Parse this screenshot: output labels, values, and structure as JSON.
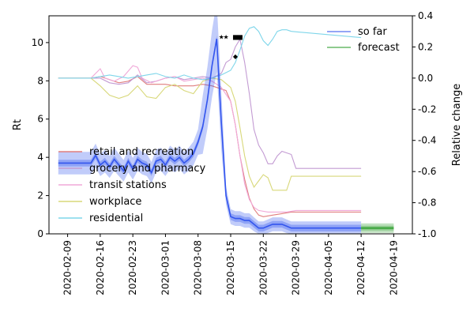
{
  "chart_data": {
    "type": "line",
    "ylabel_left": "Rt",
    "ylabel_right": "Relative change",
    "ylim_left": [
      0,
      11.4
    ],
    "ylim_right": [
      -1.0,
      0.4
    ],
    "xlim": [
      "2020-02-05",
      "2020-04-23"
    ],
    "legend_placement_right": "top-right",
    "legend_placement_left": "center-left",
    "x_ticks": [
      "2020-02-09",
      "2020-02-16",
      "2020-02-23",
      "2020-03-01",
      "2020-03-08",
      "2020-03-15",
      "2020-03-22",
      "2020-03-29",
      "2020-04-05",
      "2020-04-12",
      "2020-04-19"
    ],
    "y_ticks_left": [
      "0",
      "2",
      "4",
      "6",
      "8",
      "10"
    ],
    "y_ticks_right": [
      "-1.0",
      "-0.8",
      "-0.6",
      "-0.4",
      "-0.2",
      "0.0",
      "0.2",
      "0.4"
    ],
    "rt_series": [
      {
        "name": "so far",
        "color": "#3355ee",
        "points": [
          [
            "2020-02-07",
            3.7
          ],
          [
            "2020-02-14",
            3.7
          ],
          [
            "2020-02-15",
            4.1
          ],
          [
            "2020-02-16",
            3.6
          ],
          [
            "2020-02-17",
            3.8
          ],
          [
            "2020-02-18",
            3.5
          ],
          [
            "2020-02-19",
            3.9
          ],
          [
            "2020-02-20",
            3.6
          ],
          [
            "2020-02-21",
            3.3
          ],
          [
            "2020-02-22",
            3.8
          ],
          [
            "2020-02-23",
            3.4
          ],
          [
            "2020-02-24",
            3.9
          ],
          [
            "2020-02-25",
            3.7
          ],
          [
            "2020-02-26",
            3.6
          ],
          [
            "2020-02-27",
            3.2
          ],
          [
            "2020-02-28",
            3.8
          ],
          [
            "2020-02-29",
            3.9
          ],
          [
            "2020-03-01",
            3.6
          ],
          [
            "2020-03-02",
            4.0
          ],
          [
            "2020-03-03",
            3.8
          ],
          [
            "2020-03-04",
            4.0
          ],
          [
            "2020-03-05",
            3.7
          ],
          [
            "2020-03-06",
            3.9
          ],
          [
            "2020-03-07",
            4.2
          ],
          [
            "2020-03-08",
            4.8
          ],
          [
            "2020-03-09",
            5.6
          ],
          [
            "2020-03-10",
            7.0
          ],
          [
            "2020-03-11",
            8.8
          ],
          [
            "2020-03-12",
            10.2
          ],
          [
            "2020-03-13",
            5.8
          ],
          [
            "2020-03-14",
            2.0
          ],
          [
            "2020-03-15",
            0.9
          ],
          [
            "2020-03-16",
            0.8
          ],
          [
            "2020-03-17",
            0.8
          ],
          [
            "2020-03-18",
            0.7
          ],
          [
            "2020-03-19",
            0.7
          ],
          [
            "2020-03-20",
            0.5
          ],
          [
            "2020-03-21",
            0.3
          ],
          [
            "2020-03-22",
            0.3
          ],
          [
            "2020-03-23",
            0.4
          ],
          [
            "2020-03-24",
            0.5
          ],
          [
            "2020-03-25",
            0.5
          ],
          [
            "2020-03-26",
            0.5
          ],
          [
            "2020-03-27",
            0.4
          ],
          [
            "2020-03-28",
            0.3
          ],
          [
            "2020-04-12",
            0.3
          ]
        ],
        "band": [
          0.35,
          0.7
        ]
      },
      {
        "name": "forecast",
        "color": "#2a9d2a",
        "points": [
          [
            "2020-04-12",
            0.3
          ],
          [
            "2020-04-19",
            0.3
          ]
        ],
        "band": [
          0.25,
          0.25
        ]
      }
    ],
    "mobility_series": [
      {
        "name": "retail and recreation",
        "color": "#e07f7f",
        "points": [
          [
            "2020-02-07",
            0.0
          ],
          [
            "2020-02-14",
            0.0
          ],
          [
            "2020-02-16",
            0.01
          ],
          [
            "2020-02-18",
            -0.01
          ],
          [
            "2020-02-20",
            -0.03
          ],
          [
            "2020-02-22",
            -0.02
          ],
          [
            "2020-02-24",
            0.01
          ],
          [
            "2020-02-26",
            -0.04
          ],
          [
            "2020-02-28",
            -0.04
          ],
          [
            "2020-03-01",
            -0.04
          ],
          [
            "2020-03-03",
            -0.05
          ],
          [
            "2020-03-05",
            -0.05
          ],
          [
            "2020-03-07",
            -0.05
          ],
          [
            "2020-03-09",
            -0.04
          ],
          [
            "2020-03-11",
            -0.05
          ],
          [
            "2020-03-13",
            -0.07
          ],
          [
            "2020-03-14",
            -0.08
          ],
          [
            "2020-03-15",
            -0.15
          ],
          [
            "2020-03-16",
            -0.3
          ],
          [
            "2020-03-17",
            -0.5
          ],
          [
            "2020-03-18",
            -0.65
          ],
          [
            "2020-03-19",
            -0.77
          ],
          [
            "2020-03-20",
            -0.84
          ],
          [
            "2020-03-21",
            -0.88
          ],
          [
            "2020-03-22",
            -0.89
          ],
          [
            "2020-03-24",
            -0.88
          ],
          [
            "2020-03-26",
            -0.87
          ],
          [
            "2020-03-28",
            -0.86
          ],
          [
            "2020-03-29",
            -0.86
          ],
          [
            "2020-04-12",
            -0.86
          ]
        ]
      },
      {
        "name": "grocery and pharmacy",
        "color": "#c39bd3",
        "points": [
          [
            "2020-02-07",
            0.0
          ],
          [
            "2020-02-14",
            0.0
          ],
          [
            "2020-02-16",
            0.0
          ],
          [
            "2020-02-18",
            -0.03
          ],
          [
            "2020-02-20",
            -0.04
          ],
          [
            "2020-02-22",
            -0.03
          ],
          [
            "2020-02-24",
            0.02
          ],
          [
            "2020-02-26",
            -0.03
          ],
          [
            "2020-02-28",
            -0.02
          ],
          [
            "2020-03-01",
            0.0
          ],
          [
            "2020-03-03",
            0.01
          ],
          [
            "2020-03-05",
            -0.01
          ],
          [
            "2020-03-07",
            0.0
          ],
          [
            "2020-03-09",
            0.01
          ],
          [
            "2020-03-11",
            0.0
          ],
          [
            "2020-03-13",
            0.03
          ],
          [
            "2020-03-14",
            0.1
          ],
          [
            "2020-03-15",
            0.12
          ],
          [
            "2020-03-16",
            0.2
          ],
          [
            "2020-03-17",
            0.25
          ],
          [
            "2020-03-18",
            0.1
          ],
          [
            "2020-03-19",
            -0.1
          ],
          [
            "2020-03-20",
            -0.33
          ],
          [
            "2020-03-21",
            -0.43
          ],
          [
            "2020-03-22",
            -0.48
          ],
          [
            "2020-03-23",
            -0.55
          ],
          [
            "2020-03-24",
            -0.55
          ],
          [
            "2020-03-25",
            -0.5
          ],
          [
            "2020-03-26",
            -0.47
          ],
          [
            "2020-03-27",
            -0.48
          ],
          [
            "2020-03-28",
            -0.49
          ],
          [
            "2020-03-29",
            -0.58
          ],
          [
            "2020-04-12",
            -0.58
          ]
        ]
      },
      {
        "name": "transit stations",
        "color": "#f0a8d8",
        "points": [
          [
            "2020-02-07",
            0.0
          ],
          [
            "2020-02-14",
            0.0
          ],
          [
            "2020-02-16",
            0.06
          ],
          [
            "2020-02-17",
            0.0
          ],
          [
            "2020-02-19",
            -0.02
          ],
          [
            "2020-02-21",
            0.01
          ],
          [
            "2020-02-23",
            0.08
          ],
          [
            "2020-02-24",
            0.07
          ],
          [
            "2020-02-25",
            0.0
          ],
          [
            "2020-02-27",
            -0.03
          ],
          [
            "2020-03-01",
            0.0
          ],
          [
            "2020-03-03",
            0.01
          ],
          [
            "2020-03-05",
            -0.02
          ],
          [
            "2020-03-07",
            -0.01
          ],
          [
            "2020-03-09",
            0.0
          ],
          [
            "2020-03-11",
            -0.02
          ],
          [
            "2020-03-13",
            -0.06
          ],
          [
            "2020-03-15",
            -0.15
          ],
          [
            "2020-03-16",
            -0.3
          ],
          [
            "2020-03-17",
            -0.5
          ],
          [
            "2020-03-18",
            -0.68
          ],
          [
            "2020-03-19",
            -0.78
          ],
          [
            "2020-03-20",
            -0.83
          ],
          [
            "2020-03-21",
            -0.85
          ],
          [
            "2020-03-23",
            -0.86
          ],
          [
            "2020-03-25",
            -0.86
          ],
          [
            "2020-03-27",
            -0.86
          ],
          [
            "2020-03-29",
            -0.85
          ],
          [
            "2020-04-12",
            -0.85
          ]
        ]
      },
      {
        "name": "workplace",
        "color": "#d8d87a",
        "points": [
          [
            "2020-02-07",
            0.0
          ],
          [
            "2020-02-14",
            0.0
          ],
          [
            "2020-02-16",
            -0.05
          ],
          [
            "2020-02-18",
            -0.11
          ],
          [
            "2020-02-20",
            -0.13
          ],
          [
            "2020-02-22",
            -0.11
          ],
          [
            "2020-02-24",
            -0.05
          ],
          [
            "2020-02-26",
            -0.12
          ],
          [
            "2020-02-28",
            -0.13
          ],
          [
            "2020-03-01",
            -0.06
          ],
          [
            "2020-03-03",
            -0.04
          ],
          [
            "2020-03-05",
            -0.08
          ],
          [
            "2020-03-07",
            -0.1
          ],
          [
            "2020-03-09",
            -0.02
          ],
          [
            "2020-03-11",
            0.0
          ],
          [
            "2020-03-13",
            -0.01
          ],
          [
            "2020-03-15",
            -0.06
          ],
          [
            "2020-03-16",
            -0.15
          ],
          [
            "2020-03-17",
            -0.32
          ],
          [
            "2020-03-18",
            -0.5
          ],
          [
            "2020-03-19",
            -0.63
          ],
          [
            "2020-03-20",
            -0.7
          ],
          [
            "2020-03-21",
            -0.66
          ],
          [
            "2020-03-22",
            -0.62
          ],
          [
            "2020-03-23",
            -0.64
          ],
          [
            "2020-03-24",
            -0.72
          ],
          [
            "2020-03-27",
            -0.72
          ],
          [
            "2020-03-28",
            -0.63
          ],
          [
            "2020-04-12",
            -0.63
          ]
        ]
      },
      {
        "name": "residential",
        "color": "#7fd6ea",
        "points": [
          [
            "2020-02-07",
            0.0
          ],
          [
            "2020-02-14",
            0.0
          ],
          [
            "2020-02-16",
            0.01
          ],
          [
            "2020-02-18",
            0.02
          ],
          [
            "2020-02-20",
            0.01
          ],
          [
            "2020-02-22",
            0.0
          ],
          [
            "2020-02-24",
            0.01
          ],
          [
            "2020-02-26",
            0.02
          ],
          [
            "2020-02-28",
            0.03
          ],
          [
            "2020-03-01",
            0.01
          ],
          [
            "2020-03-03",
            0.0
          ],
          [
            "2020-03-05",
            0.02
          ],
          [
            "2020-03-07",
            0.0
          ],
          [
            "2020-03-09",
            -0.01
          ],
          [
            "2020-03-11",
            0.0
          ],
          [
            "2020-03-13",
            0.02
          ],
          [
            "2020-03-15",
            0.05
          ],
          [
            "2020-03-16",
            0.1
          ],
          [
            "2020-03-17",
            0.18
          ],
          [
            "2020-03-18",
            0.27
          ],
          [
            "2020-03-19",
            0.32
          ],
          [
            "2020-03-20",
            0.33
          ],
          [
            "2020-03-21",
            0.3
          ],
          [
            "2020-03-22",
            0.24
          ],
          [
            "2020-03-23",
            0.21
          ],
          [
            "2020-03-24",
            0.25
          ],
          [
            "2020-03-25",
            0.3
          ],
          [
            "2020-03-26",
            0.31
          ],
          [
            "2020-03-27",
            0.31
          ],
          [
            "2020-03-28",
            0.3
          ],
          [
            "2020-04-12",
            0.26
          ]
        ]
      }
    ],
    "markers": [
      {
        "date": "2020-03-13",
        "value": 10.3,
        "glyph": "★"
      },
      {
        "date": "2020-03-14",
        "value": 10.3,
        "glyph": "★"
      },
      {
        "date": "2020-03-16",
        "value": 10.3,
        "glyph": "■"
      },
      {
        "date": "2020-03-17",
        "value": 10.3,
        "glyph": "■"
      },
      {
        "date": "2020-03-16",
        "value": 9.3,
        "glyph": "◆"
      }
    ]
  }
}
